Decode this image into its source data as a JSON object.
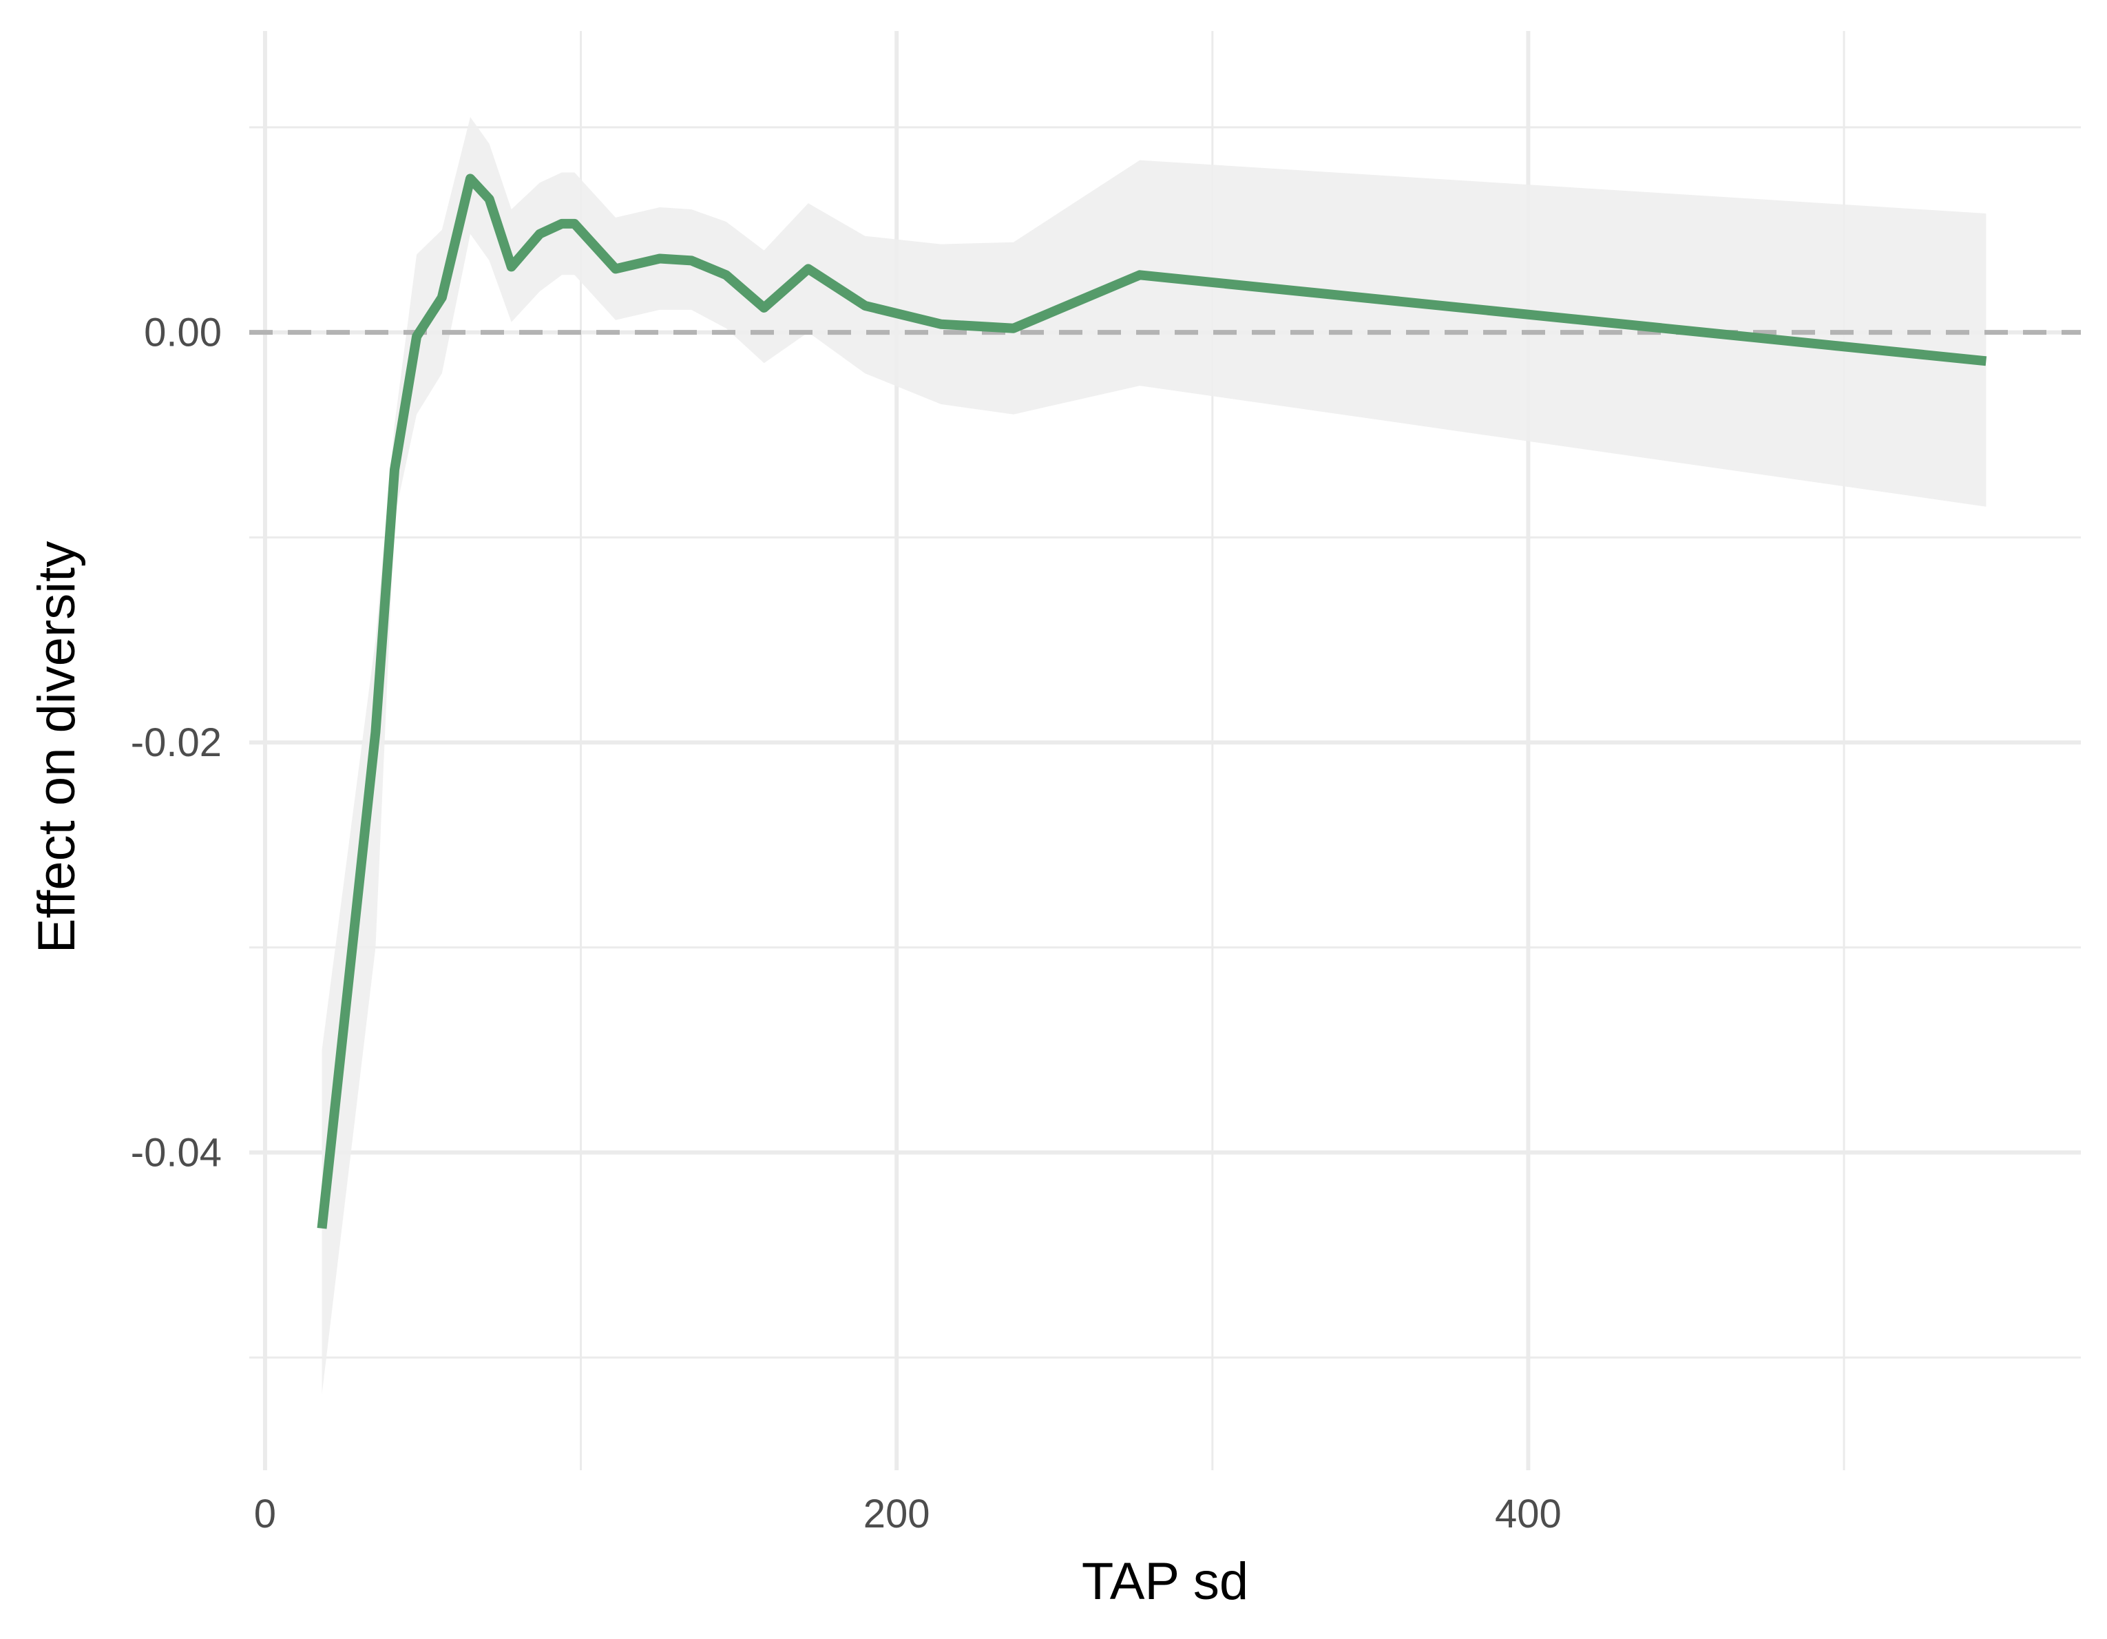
{
  "chart_data": {
    "type": "line",
    "title": "",
    "xlabel": "TAP sd",
    "ylabel": "Effect on diversity",
    "xlim": [
      -5,
      575
    ],
    "ylim": [
      -0.0555,
      0.0147
    ],
    "x_ticks": [
      0,
      200,
      400
    ],
    "x_tick_labels": [
      "0",
      "200",
      "400"
    ],
    "x_minor_ticks": [
      100,
      300,
      500
    ],
    "y_ticks": [
      -0.04,
      -0.02,
      0.0
    ],
    "y_tick_labels": [
      "-0.04",
      "-0.02",
      "0.00"
    ],
    "y_minor_ticks": [
      -0.05,
      -0.03,
      -0.01,
      0.01
    ],
    "grid": true,
    "reference_line": {
      "y": 0.0,
      "style": "dashed",
      "color": "#b3b3b3"
    },
    "series": [
      {
        "color": "#559b6a",
        "ribbon_color": "#eeeeee",
        "x": [
          18,
          35,
          41,
          48,
          56,
          65,
          71,
          78,
          87,
          94,
          98,
          111,
          125,
          135,
          146,
          158,
          172,
          190,
          214,
          237,
          277,
          545
        ],
        "y": [
          -0.0437,
          -0.0195,
          -0.0067,
          -0.0002,
          0.0017,
          0.0075,
          0.0065,
          0.0032,
          0.0048,
          0.0053,
          0.0053,
          0.0031,
          0.0036,
          0.0035,
          0.0028,
          0.0012,
          0.0031,
          0.0013,
          0.0004,
          0.0002,
          0.0028,
          -0.0014
        ],
        "lower": [
          -0.0518,
          -0.03,
          -0.009,
          -0.004,
          -0.002,
          0.0048,
          0.0035,
          0.0005,
          0.002,
          0.0028,
          0.0028,
          0.0006,
          0.0011,
          0.0011,
          0.0002,
          -0.0015,
          0.0,
          -0.002,
          -0.0035,
          -0.004,
          -0.0026,
          -0.0085
        ],
        "upper": [
          -0.035,
          -0.015,
          -0.0045,
          0.0038,
          0.005,
          0.0105,
          0.0092,
          0.006,
          0.0073,
          0.0078,
          0.0078,
          0.0056,
          0.0061,
          0.006,
          0.0054,
          0.004,
          0.0063,
          0.0047,
          0.0043,
          0.0044,
          0.0084,
          0.0058
        ]
      }
    ]
  }
}
